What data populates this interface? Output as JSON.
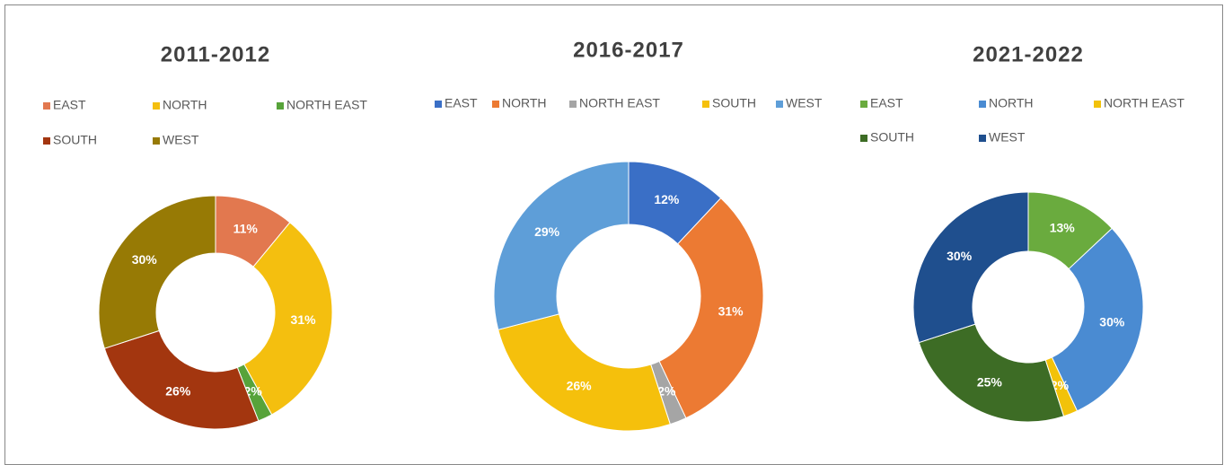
{
  "chart_data": [
    {
      "type": "donut",
      "title": "2011-2012",
      "categories": [
        "EAST",
        "NORTH",
        "NORTH EAST",
        "SOUTH",
        "WEST"
      ],
      "values": [
        11,
        31,
        2,
        26,
        30
      ],
      "value_labels": [
        "11%",
        "31%",
        "2%",
        "26%",
        "30%"
      ],
      "colors": [
        "#e2784f",
        "#f4bf0f",
        "#57a33a",
        "#a3360f",
        "#977a05"
      ]
    },
    {
      "type": "donut",
      "title": "2016-2017",
      "categories": [
        "EAST",
        "NORTH",
        "NORTH EAST",
        "SOUTH",
        "WEST"
      ],
      "values": [
        12,
        31,
        2,
        26,
        29
      ],
      "value_labels": [
        "12%",
        "31%",
        "2%",
        "26%",
        "29%"
      ],
      "colors": [
        "#3a6fc6",
        "#ec7a33",
        "#a5a5a5",
        "#f5c00c",
        "#5e9ed8"
      ]
    },
    {
      "type": "donut",
      "title": "2021-2022",
      "categories": [
        "EAST",
        "NORTH",
        "NORTH EAST",
        "SOUTH",
        "WEST"
      ],
      "values": [
        13,
        30,
        2,
        25,
        30
      ],
      "value_labels": [
        "13%",
        "30%",
        "2%",
        "25%",
        "30%"
      ],
      "colors": [
        "#6aab3e",
        "#4a8bd2",
        "#f2c20a",
        "#3d6c25",
        "#1f4f8e"
      ]
    }
  ]
}
